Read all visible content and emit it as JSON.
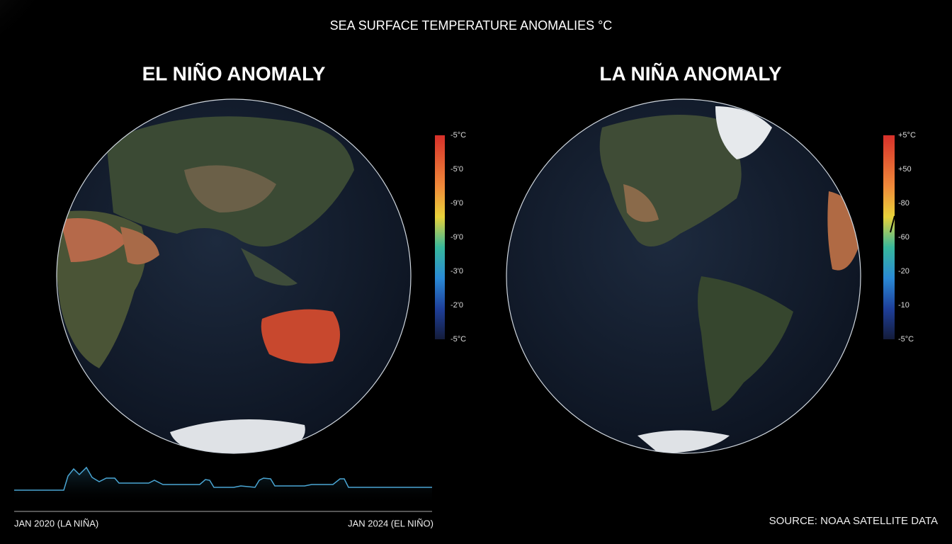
{
  "header": {
    "title": "SEA SURFACE TEMPERATURE ANOMALIES °C"
  },
  "panels": [
    {
      "title": "EL NIÑO ANOMALY",
      "scale_labels": [
        "-5°C",
        "-5'0",
        "-9'0",
        "-9'0",
        "-3'0",
        "-2'0",
        "-5°C"
      ]
    },
    {
      "title": "LA NIÑA ANOMALY",
      "scale_labels": [
        "+5°C",
        "+50",
        "-80",
        "-60",
        "-20",
        "-10",
        "-5°C"
      ]
    }
  ],
  "timeline": {
    "start_label": "JAN 2020 (LA NIÑA)",
    "end_label": "JAN 2024 (EL NIÑO)"
  },
  "footer": {
    "source": "SOURCE: NOAA SATELLITE DATA"
  }
}
